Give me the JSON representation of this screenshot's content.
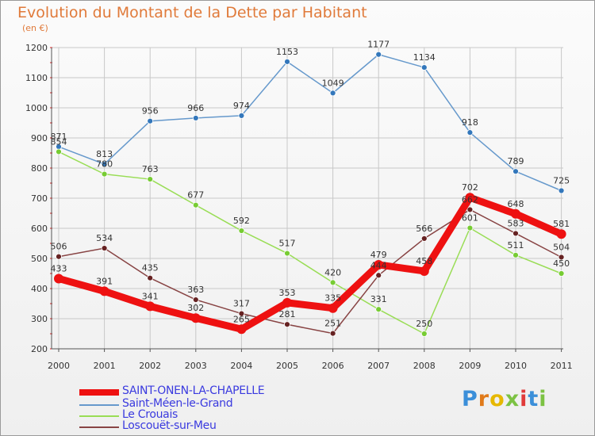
{
  "title": "Evolution du Montant de la Dette par Habitant",
  "unit": "(en €)",
  "logo": "Proxiti",
  "colors": {
    "grid": "#c8c8c8",
    "axis": "#555555",
    "tick_text": "#333333",
    "value_text": "#333333",
    "minor_tick": "#e02020"
  },
  "chart_data": {
    "type": "line",
    "title": "Evolution du Montant de la Dette par Habitant",
    "ylabel": "(en €)",
    "xlabel": "",
    "ylim": [
      200,
      1200
    ],
    "yticks": [
      200,
      300,
      400,
      500,
      600,
      700,
      800,
      900,
      1000,
      1100,
      1200
    ],
    "categories": [
      "2000",
      "2001",
      "2002",
      "2003",
      "2004",
      "2005",
      "2006",
      "2007",
      "2008",
      "2009",
      "2010",
      "2011"
    ],
    "grid": true,
    "legend_position": "bottom-left",
    "series": [
      {
        "name": "SAINT-ONEN-LA-CHAPELLE",
        "color": "#ee1111",
        "bold": true,
        "values": [
          433,
          391,
          341,
          302,
          265,
          353,
          335,
          479,
          458,
          702,
          648,
          581
        ]
      },
      {
        "name": "Saint-Méen-le-Grand",
        "color": "#6699cc",
        "point_color": "#3377bb",
        "bold": false,
        "values": [
          871,
          813,
          956,
          966,
          974,
          1153,
          1049,
          1177,
          1134,
          918,
          789,
          725
        ]
      },
      {
        "name": "Le Crouais",
        "color": "#99dd55",
        "point_color": "#77cc33",
        "bold": false,
        "values": [
          854,
          780,
          763,
          677,
          592,
          517,
          420,
          331,
          250,
          601,
          511,
          450
        ]
      },
      {
        "name": "Loscouët-sur-Meu",
        "color": "#884444",
        "point_color": "#662222",
        "bold": false,
        "values": [
          506,
          534,
          435,
          363,
          317,
          281,
          251,
          444,
          566,
          662,
          583,
          504
        ]
      }
    ]
  }
}
